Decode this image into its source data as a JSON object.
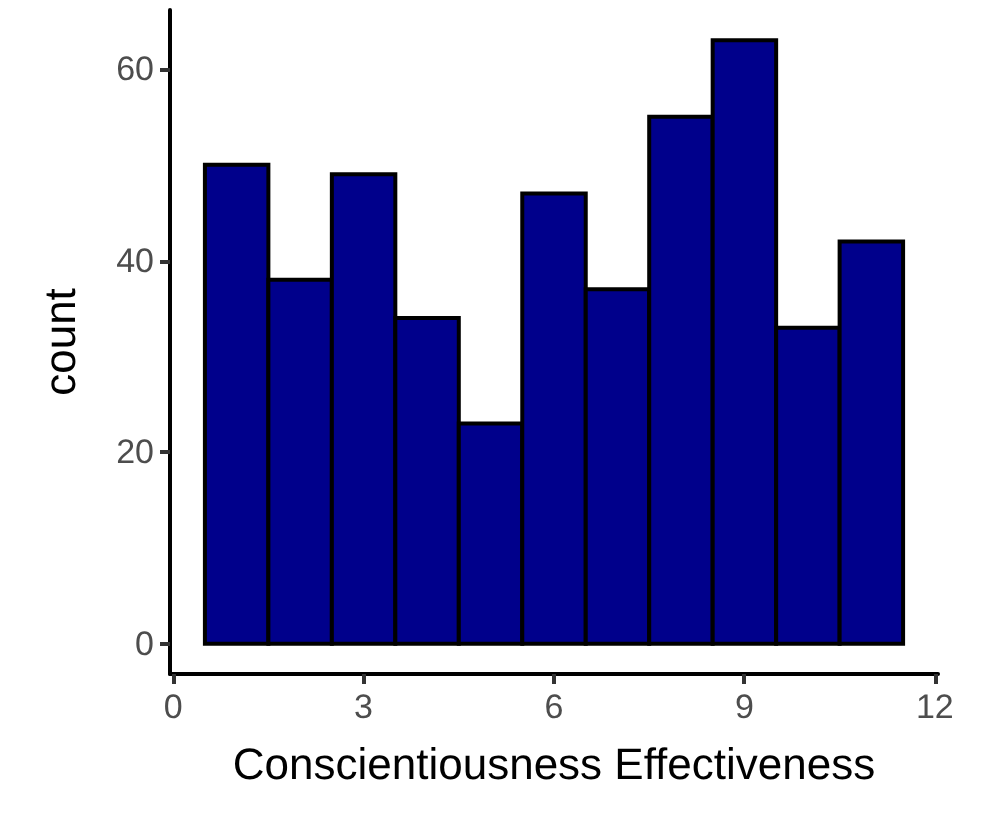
{
  "chart_data": {
    "type": "histogram",
    "xlabel": "Conscientiousness Effectiveness",
    "ylabel": "count",
    "bins": [
      0.5,
      1.5,
      2.5,
      3.5,
      4.5,
      5.5,
      6.5,
      7.5,
      8.5,
      9.5,
      10.5,
      11.5
    ],
    "values": [
      50,
      38,
      49,
      34,
      23,
      47,
      37,
      55,
      63,
      33,
      42
    ],
    "color": "#00008b",
    "xlim": [
      -0.05,
      12.05
    ],
    "xticks": [
      0,
      3,
      6,
      9,
      12
    ],
    "ylim": [
      -3.15,
      66.15
    ],
    "yticks": [
      0,
      20,
      40,
      60
    ],
    "grid": false
  }
}
